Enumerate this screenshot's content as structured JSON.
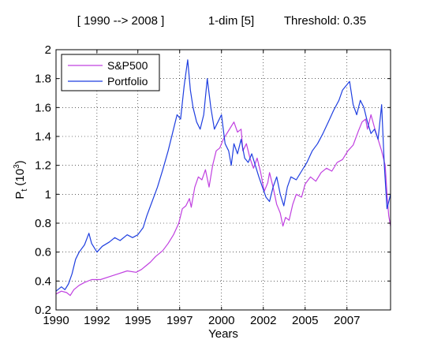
{
  "figure": {
    "title_parts": [
      "[ 1990 --> 2008 ]",
      "1-dim [5]",
      "Threshold: 0.35"
    ]
  },
  "chart_data": {
    "type": "line",
    "xlabel": "Years",
    "ylabel": "P",
    "ylabel_sub": "t",
    "ylabel_paren_open": "(10",
    "ylabel_sup": "3",
    "ylabel_paren_close": ")",
    "xlim": [
      1990.0,
      2008.8
    ],
    "ylim": [
      0.2,
      2.0
    ],
    "grid": true,
    "legend_position": "top-left",
    "x_ticks": [
      {
        "value": 1990.0,
        "label": "1990"
      },
      {
        "value": 1992.3,
        "label": "1992"
      },
      {
        "value": 1994.6,
        "label": "1995"
      },
      {
        "value": 1996.95,
        "label": "1997"
      },
      {
        "value": 1999.3,
        "label": "2000"
      },
      {
        "value": 2001.65,
        "label": "2002"
      },
      {
        "value": 2004.0,
        "label": "2005"
      },
      {
        "value": 2006.35,
        "label": "2007"
      }
    ],
    "y_ticks": [
      {
        "value": 0.2,
        "label": "0.2"
      },
      {
        "value": 0.4,
        "label": "0.4"
      },
      {
        "value": 0.6,
        "label": "0.6"
      },
      {
        "value": 0.8,
        "label": "0.8"
      },
      {
        "value": 1.0,
        "label": "1"
      },
      {
        "value": 1.2,
        "label": "1.2"
      },
      {
        "value": 1.4,
        "label": "1.4"
      },
      {
        "value": 1.6,
        "label": "1.6"
      },
      {
        "value": 1.8,
        "label": "1.8"
      },
      {
        "value": 2.0,
        "label": "2"
      }
    ],
    "series": [
      {
        "name": "S&P500",
        "color": "#c040e0",
        "points": [
          [
            1990.0,
            0.31
          ],
          [
            1990.3,
            0.33
          ],
          [
            1990.6,
            0.32
          ],
          [
            1990.8,
            0.3
          ],
          [
            1991.0,
            0.34
          ],
          [
            1991.3,
            0.37
          ],
          [
            1991.6,
            0.39
          ],
          [
            1992.0,
            0.41
          ],
          [
            1992.5,
            0.41
          ],
          [
            1993.0,
            0.43
          ],
          [
            1993.5,
            0.45
          ],
          [
            1994.0,
            0.47
          ],
          [
            1994.5,
            0.46
          ],
          [
            1994.8,
            0.48
          ],
          [
            1995.0,
            0.5
          ],
          [
            1995.3,
            0.53
          ],
          [
            1995.6,
            0.57
          ],
          [
            1996.0,
            0.61
          ],
          [
            1996.3,
            0.66
          ],
          [
            1996.6,
            0.72
          ],
          [
            1996.9,
            0.8
          ],
          [
            1997.1,
            0.9
          ],
          [
            1997.3,
            0.92
          ],
          [
            1997.5,
            0.97
          ],
          [
            1997.6,
            0.91
          ],
          [
            1997.8,
            1.05
          ],
          [
            1998.0,
            1.12
          ],
          [
            1998.2,
            1.1
          ],
          [
            1998.4,
            1.17
          ],
          [
            1998.6,
            1.05
          ],
          [
            1998.8,
            1.2
          ],
          [
            1999.0,
            1.3
          ],
          [
            1999.2,
            1.32
          ],
          [
            1999.4,
            1.38
          ],
          [
            1999.6,
            1.42
          ],
          [
            1999.8,
            1.46
          ],
          [
            2000.0,
            1.5
          ],
          [
            2000.2,
            1.43
          ],
          [
            2000.4,
            1.45
          ],
          [
            2000.5,
            1.3
          ],
          [
            2000.7,
            1.35
          ],
          [
            2000.9,
            1.25
          ],
          [
            2001.1,
            1.18
          ],
          [
            2001.3,
            1.25
          ],
          [
            2001.5,
            1.15
          ],
          [
            2001.7,
            1.02
          ],
          [
            2001.9,
            1.08
          ],
          [
            2002.0,
            1.15
          ],
          [
            2002.2,
            1.05
          ],
          [
            2002.4,
            0.93
          ],
          [
            2002.6,
            0.87
          ],
          [
            2002.75,
            0.78
          ],
          [
            2002.9,
            0.84
          ],
          [
            2003.1,
            0.82
          ],
          [
            2003.3,
            0.93
          ],
          [
            2003.5,
            1.0
          ],
          [
            2003.8,
            0.98
          ],
          [
            2004.0,
            1.07
          ],
          [
            2004.3,
            1.12
          ],
          [
            2004.6,
            1.09
          ],
          [
            2004.9,
            1.15
          ],
          [
            2005.2,
            1.18
          ],
          [
            2005.5,
            1.16
          ],
          [
            2005.8,
            1.22
          ],
          [
            2006.1,
            1.24
          ],
          [
            2006.4,
            1.3
          ],
          [
            2006.7,
            1.34
          ],
          [
            2007.0,
            1.44
          ],
          [
            2007.2,
            1.5
          ],
          [
            2007.4,
            1.52
          ],
          [
            2007.5,
            1.45
          ],
          [
            2007.7,
            1.55
          ],
          [
            2007.9,
            1.46
          ],
          [
            2008.1,
            1.38
          ],
          [
            2008.3,
            1.3
          ],
          [
            2008.5,
            1.2
          ],
          [
            2008.6,
            1.0
          ],
          [
            2008.7,
            0.85
          ],
          [
            2008.8,
            0.78
          ]
        ]
      },
      {
        "name": "Portfolio",
        "color": "#1f3fe0",
        "points": [
          [
            1990.0,
            0.33
          ],
          [
            1990.3,
            0.36
          ],
          [
            1990.5,
            0.34
          ],
          [
            1990.7,
            0.38
          ],
          [
            1990.9,
            0.45
          ],
          [
            1991.1,
            0.55
          ],
          [
            1991.3,
            0.6
          ],
          [
            1991.6,
            0.65
          ],
          [
            1991.85,
            0.73
          ],
          [
            1992.0,
            0.66
          ],
          [
            1992.3,
            0.6
          ],
          [
            1992.6,
            0.64
          ],
          [
            1993.0,
            0.67
          ],
          [
            1993.3,
            0.7
          ],
          [
            1993.6,
            0.68
          ],
          [
            1994.0,
            0.72
          ],
          [
            1994.3,
            0.7
          ],
          [
            1994.6,
            0.72
          ],
          [
            1994.9,
            0.77
          ],
          [
            1995.1,
            0.85
          ],
          [
            1995.4,
            0.95
          ],
          [
            1995.7,
            1.05
          ],
          [
            1996.0,
            1.17
          ],
          [
            1996.3,
            1.3
          ],
          [
            1996.6,
            1.45
          ],
          [
            1996.8,
            1.55
          ],
          [
            1997.0,
            1.52
          ],
          [
            1997.2,
            1.75
          ],
          [
            1997.4,
            1.93
          ],
          [
            1997.55,
            1.72
          ],
          [
            1997.7,
            1.6
          ],
          [
            1997.9,
            1.5
          ],
          [
            1998.1,
            1.45
          ],
          [
            1998.3,
            1.55
          ],
          [
            1998.5,
            1.8
          ],
          [
            1998.7,
            1.6
          ],
          [
            1998.9,
            1.45
          ],
          [
            1999.1,
            1.5
          ],
          [
            1999.3,
            1.55
          ],
          [
            1999.5,
            1.35
          ],
          [
            1999.7,
            1.3
          ],
          [
            1999.85,
            1.2
          ],
          [
            2000.0,
            1.35
          ],
          [
            2000.2,
            1.28
          ],
          [
            2000.4,
            1.38
          ],
          [
            2000.6,
            1.25
          ],
          [
            2000.8,
            1.22
          ],
          [
            2001.0,
            1.28
          ],
          [
            2001.2,
            1.2
          ],
          [
            2001.4,
            1.12
          ],
          [
            2001.6,
            1.05
          ],
          [
            2001.8,
            0.98
          ],
          [
            2002.0,
            0.95
          ],
          [
            2002.2,
            1.05
          ],
          [
            2002.4,
            1.12
          ],
          [
            2002.6,
            1.0
          ],
          [
            2002.8,
            0.92
          ],
          [
            2003.0,
            1.05
          ],
          [
            2003.2,
            1.12
          ],
          [
            2003.5,
            1.1
          ],
          [
            2003.8,
            1.16
          ],
          [
            2004.1,
            1.22
          ],
          [
            2004.4,
            1.3
          ],
          [
            2004.7,
            1.35
          ],
          [
            2005.0,
            1.42
          ],
          [
            2005.3,
            1.5
          ],
          [
            2005.6,
            1.58
          ],
          [
            2005.9,
            1.65
          ],
          [
            2006.1,
            1.72
          ],
          [
            2006.3,
            1.75
          ],
          [
            2006.5,
            1.78
          ],
          [
            2006.7,
            1.62
          ],
          [
            2006.9,
            1.55
          ],
          [
            2007.1,
            1.65
          ],
          [
            2007.3,
            1.6
          ],
          [
            2007.5,
            1.5
          ],
          [
            2007.7,
            1.42
          ],
          [
            2007.9,
            1.45
          ],
          [
            2008.1,
            1.38
          ],
          [
            2008.3,
            1.62
          ],
          [
            2008.45,
            1.2
          ],
          [
            2008.6,
            0.9
          ],
          [
            2008.8,
            1.0
          ]
        ]
      }
    ]
  }
}
